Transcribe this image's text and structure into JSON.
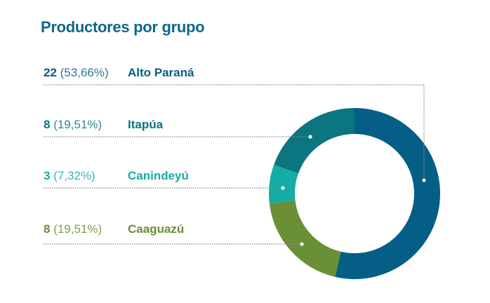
{
  "chart_data": {
    "type": "pie",
    "title": "Productores por grupo",
    "donut": true,
    "slices": [
      {
        "label": "Alto Paraná",
        "value": 22,
        "percent_label": "(53,66%)",
        "color": "#045e85"
      },
      {
        "label": "Caaguazú",
        "value": 8,
        "percent_label": "(19,51%)",
        "color": "#6a8f34"
      },
      {
        "label": "Canindeyú",
        "value": 3,
        "percent_label": "(7,32%)",
        "color": "#14aca4"
      },
      {
        "label": "Itapúa",
        "value": 8,
        "percent_label": "(19,51%)",
        "color": "#0b7580"
      }
    ],
    "legend_order": [
      0,
      3,
      2,
      1
    ]
  }
}
